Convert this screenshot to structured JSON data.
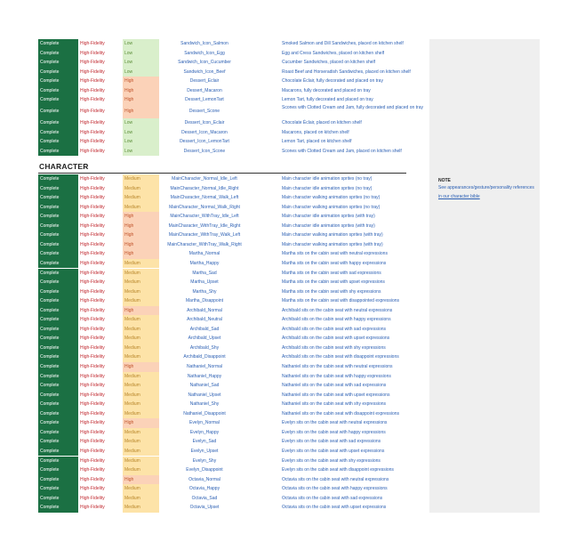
{
  "food_rows": [
    {
      "status": "Complete",
      "fidelity": "High-Fidelity",
      "priority": "Low",
      "asset": "Sandwich_Icon_Salmon",
      "description": "Smoked Salmon and Dill Sandwiches, placed on kitchen shelf"
    },
    {
      "status": "Complete",
      "fidelity": "High-Fidelity",
      "priority": "Low",
      "asset": "Sandwich_Icon_Egg",
      "description": "Egg and Cress Sandwiches, placed on kitchen shelf"
    },
    {
      "status": "Complete",
      "fidelity": "High-Fidelity",
      "priority": "Low",
      "asset": "Sandwich_Icon_Cucumber",
      "description": "Cucumber Sandwiches, placed on kitchen shelf"
    },
    {
      "status": "Complete",
      "fidelity": "High-Fidelity",
      "priority": "Low",
      "asset": "Sandwich_Icon_Beef",
      "description": "Roast Beef and Horseradish Sandwiches, placed on kitchen shelf"
    },
    {
      "status": "Complete",
      "fidelity": "High-Fidelity",
      "priority": "High",
      "asset": "Dessert_Eclair",
      "description": "Chocolate Éclair, fully decorated and placed on tray"
    },
    {
      "status": "Complete",
      "fidelity": "High-Fidelity",
      "priority": "High",
      "asset": "Dessert_Macaron",
      "description": "Macarons, fully decorated and placed on tray"
    },
    {
      "status": "Complete",
      "fidelity": "High-Fidelity",
      "priority": "High",
      "asset": "Dessert_LemonTart",
      "description": "Lemon Tart, fully decorated and placed on tray"
    },
    {
      "status": "Complete",
      "fidelity": "High-Fidelity",
      "priority": "High",
      "asset": "Dessert_Scone",
      "description": "Scones with Clotted Cream and Jam, fully decorated and placed on tray",
      "tall": true
    },
    {
      "status": "Complete",
      "fidelity": "High-Fidelity",
      "priority": "Low",
      "asset": "Dessert_Icon_Eclair",
      "description": "Chocolate Éclair, placed on kitchen shelf"
    },
    {
      "status": "Complete",
      "fidelity": "High-Fidelity",
      "priority": "Low",
      "asset": "Dessert_Icon_Macaron",
      "description": "Macarons, placed on kitchen shelf"
    },
    {
      "status": "Complete",
      "fidelity": "High-Fidelity",
      "priority": "Low",
      "asset": "Dessert_Icon_LemonTart",
      "description": "Lemon Tart, placed on kitchen shelf"
    },
    {
      "status": "Complete",
      "fidelity": "High-Fidelity",
      "priority": "Low",
      "asset": "Dessert_Icon_Scone",
      "description": "Scones with Clotted Cream and Jam, placed on kitchen shelf"
    }
  ],
  "section_title": "CHARACTER",
  "character_rows": [
    {
      "status": "Complete",
      "fidelity": "High-Fidelity",
      "priority": "Medium",
      "asset": "MainCharacter_Normal_Idle_Left",
      "description": "Main character idle animation sprites (no tray)"
    },
    {
      "status": "Complete",
      "fidelity": "High-Fidelity",
      "priority": "Medium",
      "asset": "MainCharacter_Normal_Idle_Right",
      "description": "Main character idle animation sprites (no tray)"
    },
    {
      "status": "Complete",
      "fidelity": "High-Fidelity",
      "priority": "Medium",
      "asset": "MainCharacter_Normal_Walk_Left",
      "description": "Main character walking animation sprites (no tray)"
    },
    {
      "status": "Complete",
      "fidelity": "High-Fidelity",
      "priority": "Medium",
      "asset": "MainCharacter_Normal_Walk_Right",
      "description": "Main character walking animation sprites (no tray)"
    },
    {
      "status": "Complete",
      "fidelity": "High-Fidelity",
      "priority": "High",
      "asset": "MainCharacter_WithTray_Idle_Left",
      "description": "Main character idle animation sprites (with tray)"
    },
    {
      "status": "Complete",
      "fidelity": "High-Fidelity",
      "priority": "High",
      "asset": "MainCharacter_WithTray_Idle_Right",
      "description": "Main character idle animation sprites (with tray)"
    },
    {
      "status": "Complete",
      "fidelity": "High-Fidelity",
      "priority": "High",
      "asset": "MainCharacter_WithTray_Walk_Left",
      "description": "Main character walking animation sprites (with tray)"
    },
    {
      "status": "Complete",
      "fidelity": "High-Fidelity",
      "priority": "High",
      "asset": "MainCharacter_WithTray_Walk_Right",
      "description": "Main character walking animation sprites (with tray)"
    },
    {
      "status": "Complete",
      "fidelity": "High-Fidelity",
      "priority": "High",
      "asset": "Martha_Normal",
      "description": "Martha sits on the cabin seat with neutral expressions"
    },
    {
      "status": "Complete",
      "fidelity": "High-Fidelity",
      "priority": "Medium",
      "asset": "Martha_Happy",
      "description": "Martha sits on the cabin seat with happy expressions"
    },
    {
      "status": "Complete",
      "fidelity": "High-Fidelity",
      "priority": "Medium",
      "asset": "Martha_Sad",
      "description": "Martha sits on the cabin seat with sad expressions"
    },
    {
      "status": "Complete",
      "fidelity": "High-Fidelity",
      "priority": "Medium",
      "asset": "Martha_Upset",
      "description": "Martha sits on the cabin seat with upset expressions"
    },
    {
      "status": "Complete",
      "fidelity": "High-Fidelity",
      "priority": "Medium",
      "asset": "Martha_Shy",
      "description": "Martha sits on the cabin seat with shy expressions"
    },
    {
      "status": "Complete",
      "fidelity": "High-Fidelity",
      "priority": "Medium",
      "asset": "Martha_Disappoint",
      "description": "Martha sits on the cabin seat with disappointed expressions"
    },
    {
      "status": "Complete",
      "fidelity": "High-Fidelity",
      "priority": "High",
      "asset": "Archibald_Normal",
      "description": "Archibald sits on the cabin seat with neutral expressions"
    },
    {
      "status": "Complete",
      "fidelity": "High-Fidelity",
      "priority": "Medium",
      "asset": "Archibald_Neutral",
      "description": "Archibald sits on the cabin seat with happy expressions"
    },
    {
      "status": "Complete",
      "fidelity": "High-Fidelity",
      "priority": "Medium",
      "asset": "Archibald_Sad",
      "description": "Archibald sits on the cabin seat with sad expressions"
    },
    {
      "status": "Complete",
      "fidelity": "High-Fidelity",
      "priority": "Medium",
      "asset": "Archibald_Upset",
      "description": "Archibald sits on the cabin seat with upset expressions"
    },
    {
      "status": "Complete",
      "fidelity": "High-Fidelity",
      "priority": "Medium",
      "asset": "Archibald_Shy",
      "description": "Archibald sits on the cabin seat with shy expressions"
    },
    {
      "status": "Complete",
      "fidelity": "High-Fidelity",
      "priority": "Medium",
      "asset": "Archibald_Disappoint",
      "description": "Archibald sits on the cabin seat with disappoint expressions"
    },
    {
      "status": "Complete",
      "fidelity": "High-Fidelity",
      "priority": "High",
      "asset": "Nathaniel_Normal",
      "description": "Nathaniel sits on the cabin seat with neutral expressions"
    },
    {
      "status": "Complete",
      "fidelity": "High-Fidelity",
      "priority": "Medium",
      "asset": "Nathaniel_Happy",
      "description": "Nathaniel sits on the cabin seat with happy expressions"
    },
    {
      "status": "Complete",
      "fidelity": "High-Fidelity",
      "priority": "Medium",
      "asset": "Nathaniel_Sad",
      "description": "Nathaniel sits on the cabin seat with sad expressions"
    },
    {
      "status": "Complete",
      "fidelity": "High-Fidelity",
      "priority": "Medium",
      "asset": "Nathaniel_Upset",
      "description": "Nathaniel sits on the cabin seat with upset expressions"
    },
    {
      "status": "Complete",
      "fidelity": "High-Fidelity",
      "priority": "Medium",
      "asset": "Nathaniel_Shy",
      "description": "Nathaniel sits on the cabin seat with shy expressions"
    },
    {
      "status": "Complete",
      "fidelity": "High-Fidelity",
      "priority": "Medium",
      "asset": "Nathaniel_Disappoint",
      "description": "Nathaniel sits on the cabin seat with disappoint expressions"
    },
    {
      "status": "Complete",
      "fidelity": "High-Fidelity",
      "priority": "High",
      "asset": "Evelyn_Normal",
      "description": "Evelyn sits on the cabin seat with neutral expressions"
    },
    {
      "status": "Complete",
      "fidelity": "High-Fidelity",
      "priority": "Medium",
      "asset": "Evelyn_Happy",
      "description": "Evelyn sits on the cabin seat with happy expressions"
    },
    {
      "status": "Complete",
      "fidelity": "High-Fidelity",
      "priority": "Medium",
      "asset": "Evelyn_Sad",
      "description": "Evelyn sits on the cabin seat with sad expressions"
    },
    {
      "status": "Complete",
      "fidelity": "High-Fidelity",
      "priority": "Medium",
      "asset": "Evelyn_Upset",
      "description": "Evelyn sits on the cabin seat with upset expressions"
    },
    {
      "status": "Complete",
      "fidelity": "High-Fidelity",
      "priority": "Medium",
      "asset": "Evelyn_Shy",
      "description": "Evelyn sits on the cabin seat with shy expressions"
    },
    {
      "status": "Complete",
      "fidelity": "High-Fidelity",
      "priority": "Medium",
      "asset": "Evelyn_Disappoint",
      "description": "Evelyn sits on the cabin seat with disappoint expressions"
    },
    {
      "status": "Complete",
      "fidelity": "High-Fidelity",
      "priority": "High",
      "asset": "Octavia_Normal",
      "description": "Octavia sits on the cabin seat with neutral expressions"
    },
    {
      "status": "Complete",
      "fidelity": "High-Fidelity",
      "priority": "Medium",
      "asset": "Octavia_Happy",
      "description": "Octavia sits on the cabin seat with happy expressions"
    },
    {
      "status": "Complete",
      "fidelity": "High-Fidelity",
      "priority": "Medium",
      "asset": "Octavia_Sad",
      "description": "Octavia sits on the cabin seat with sad expressions"
    },
    {
      "status": "Complete",
      "fidelity": "High-Fidelity",
      "priority": "Medium",
      "asset": "Octavia_Upset",
      "description": "Octavia sits on the cabin seat with upset expressions"
    }
  ],
  "note": {
    "heading": "NOTE",
    "line1": "See appearances/gesture/personality references",
    "line2": "in our character bible"
  },
  "colors": {
    "status_complete": "#1b7043",
    "fidelity_text": "#c0282f",
    "priority_low": "#d9efcb",
    "priority_high": "#fbd2b8",
    "priority_medium": "#fde3a8",
    "link_text": "#2b5fb3"
  }
}
